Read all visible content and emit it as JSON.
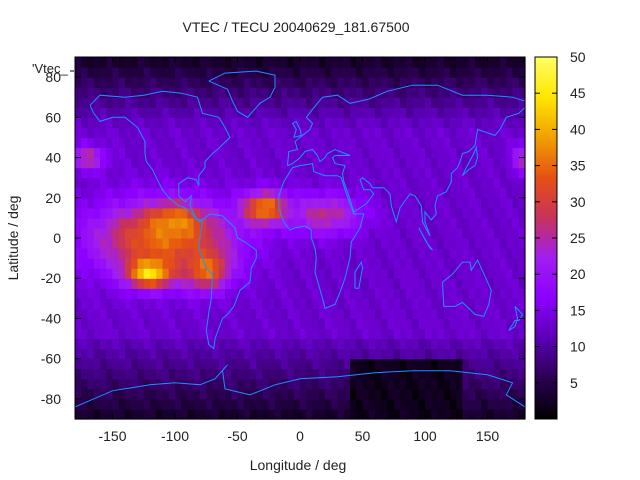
{
  "chart_data": {
    "type": "heatmap",
    "title": "VTEC / TECU 20040629_181.67500",
    "xlabel": "Longitude / deg",
    "ylabel": "Latitude / deg",
    "xlim": [
      -180,
      180
    ],
    "ylim": [
      -90,
      90
    ],
    "xticks": [
      -150,
      -100,
      -50,
      0,
      50,
      100,
      150
    ],
    "yticks": [
      -80,
      -60,
      -40,
      -20,
      0,
      20,
      40,
      60,
      80
    ],
    "colorbar": {
      "min": 0,
      "max": 50,
      "ticks": [
        5,
        10,
        15,
        20,
        25,
        30,
        35,
        40,
        45,
        50
      ],
      "palette": [
        "#000000",
        "#2a0050",
        "#5a00b4",
        "#8c00ff",
        "#a01ef0",
        "#c8325a",
        "#e65014",
        "#f0a000",
        "#ffe600",
        "#ffff64"
      ]
    },
    "legend": {
      "entry": "'Vtec_",
      "placement": "top-left"
    },
    "grid": false,
    "background_vtec": 13,
    "polar_cap_vtec": 3,
    "features": [
      {
        "name": "equatorial-anomaly-americas",
        "lon": -110,
        "lat": 0,
        "peak_vtec": 35,
        "lon_spread": 55,
        "lat_spread": 18
      },
      {
        "name": "southern-crest-americas",
        "lon": -120,
        "lat": -17,
        "peak_vtec": 45,
        "lon_spread": 18,
        "lat_spread": 7
      },
      {
        "name": "northern-crest-america",
        "lon": -100,
        "lat": 8,
        "peak_vtec": 38,
        "lon_spread": 20,
        "lat_spread": 8
      },
      {
        "name": "south-america-crest",
        "lon": -75,
        "lat": -15,
        "peak_vtec": 36,
        "lon_spread": 18,
        "lat_spread": 10
      },
      {
        "name": "atlantic-northern-crest",
        "lon": -28,
        "lat": 15,
        "peak_vtec": 38,
        "lon_spread": 18,
        "lat_spread": 8
      },
      {
        "name": "africa-west-anomaly",
        "lon": 20,
        "lat": 12,
        "peak_vtec": 26,
        "lon_spread": 30,
        "lat_spread": 10
      },
      {
        "name": "north-pacific-patch",
        "lon": -170,
        "lat": 40,
        "peak_vtec": 26,
        "lon_spread": 14,
        "lat_spread": 6
      },
      {
        "name": "asia-edge-patch",
        "lon": 178,
        "lat": 40,
        "peak_vtec": 24,
        "lon_spread": 8,
        "lat_spread": 7
      }
    ]
  }
}
